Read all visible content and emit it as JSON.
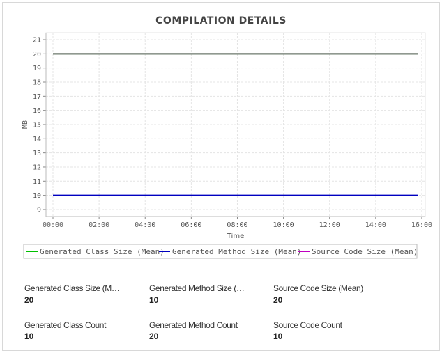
{
  "chart_data": {
    "type": "line",
    "title": "COMPILATION DETAILS",
    "xlabel": "Time",
    "ylabel": "MB",
    "x_ticks": [
      "00:00",
      "02:00",
      "04:00",
      "06:00",
      "08:00",
      "10:00",
      "12:00",
      "14:00",
      "16:00"
    ],
    "y_ticks": [
      9,
      10,
      11,
      12,
      13,
      14,
      15,
      16,
      17,
      18,
      19,
      20,
      21
    ],
    "ylim": [
      8.5,
      21.5
    ],
    "xlim": [
      "00:00",
      "16:00"
    ],
    "grid": true,
    "legend_position": "bottom",
    "series": [
      {
        "name": "Generated Class Size (Mean)",
        "color": "#00c000",
        "x": [
          "00:00",
          "15:50"
        ],
        "y": [
          20,
          20
        ]
      },
      {
        "name": "Generated Method Size (Mean)",
        "color": "#0000c0",
        "x": [
          "00:00",
          "15:50"
        ],
        "y": [
          10,
          10
        ]
      },
      {
        "name": "Source Code Size (Mean)",
        "color": "#c000c0",
        "x": [
          "00:00",
          "15:50"
        ],
        "y": [
          20,
          20
        ]
      }
    ]
  },
  "stats": [
    {
      "label": "Generated Class Size (Mean)",
      "value": "20"
    },
    {
      "label": "Generated Method Size (Mean)",
      "value": "10"
    },
    {
      "label": "Source Code Size (Mean)",
      "value": "20"
    },
    {
      "label": "Generated Class Count",
      "value": "10"
    },
    {
      "label": "Generated Method Count",
      "value": "20"
    },
    {
      "label": "Source Code Count",
      "value": "10"
    }
  ]
}
